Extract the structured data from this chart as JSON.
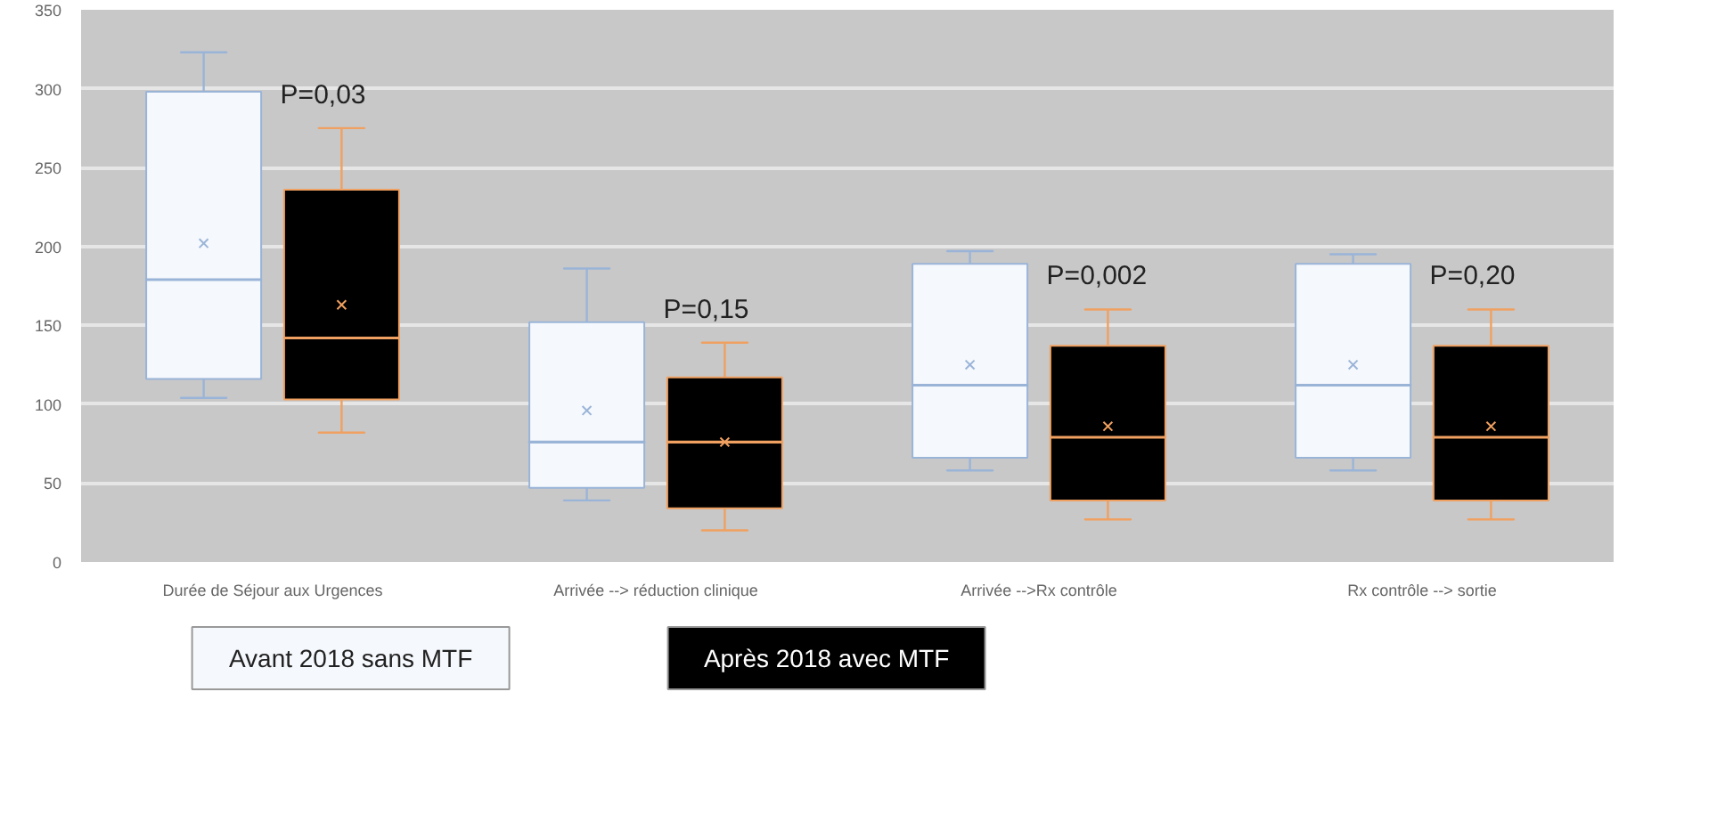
{
  "chart_data": {
    "type": "box",
    "categories": [
      "Durée de Séjour aux Urgences",
      "Arrivée --> réduction clinique",
      "Arrivée -->Rx contrôle",
      "Rx contrôle --> sortie"
    ],
    "series": [
      {
        "name": "Avant 2018 sans MTF",
        "color": "#f5f8fc",
        "boxes": [
          {
            "low": 104,
            "q1": 116,
            "median": 179,
            "q3": 298,
            "high": 323,
            "mean": 202
          },
          {
            "low": 39,
            "q1": 47,
            "median": 76,
            "q3": 152,
            "high": 186,
            "mean": 96
          },
          {
            "low": 58,
            "q1": 66,
            "median": 112,
            "q3": 189,
            "high": 197,
            "mean": 125
          },
          {
            "low": 58,
            "q1": 66,
            "median": 112,
            "q3": 189,
            "high": 195,
            "mean": 125
          }
        ]
      },
      {
        "name": "Après 2018 avec MTF",
        "color": "#000000",
        "boxes": [
          {
            "low": 82,
            "q1": 103,
            "median": 142,
            "q3": 236,
            "high": 275,
            "mean": 163
          },
          {
            "low": 20,
            "q1": 34,
            "median": 76,
            "q3": 117,
            "high": 139,
            "mean": 76
          },
          {
            "low": 27,
            "q1": 39,
            "median": 79,
            "q3": 137,
            "high": 160,
            "mean": 86
          },
          {
            "low": 27,
            "q1": 39,
            "median": 79,
            "q3": 137,
            "high": 160,
            "mean": 86
          }
        ]
      }
    ],
    "ylim": [
      0,
      350
    ],
    "yticks": [
      0,
      50,
      100,
      150,
      200,
      250,
      300,
      350
    ],
    "grid": "y",
    "legend": "bottom",
    "annotations": [
      "P=0,03",
      "P=0,15",
      "P=0,002",
      "P=0,20"
    ]
  }
}
